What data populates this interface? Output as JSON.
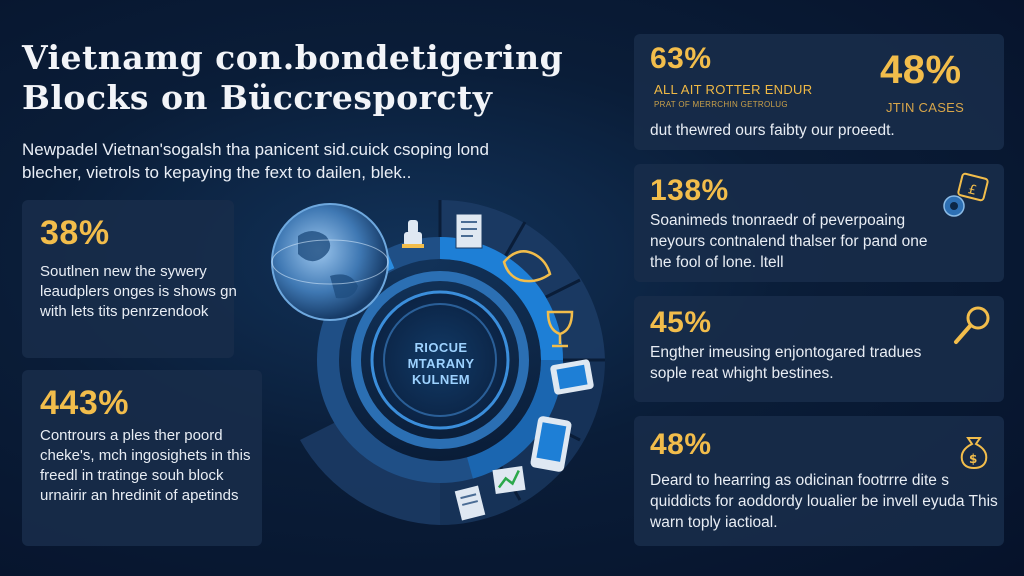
{
  "title": {
    "line1": "Vietnamg con.bondetigering",
    "line2": "Blocks on Büccresporcty"
  },
  "subtitle": {
    "lead": "Newpadel Vietnan'sogalsh tha panicent sid.cuick csoping lond",
    "line2": "blecher, vietrols to kepaying the fext to dailen, blek.."
  },
  "left_cards": [
    {
      "percent": "38%",
      "text": "Soutlnen new the sywery leaudplers onges is shows gn with lets tits penrzendook"
    },
    {
      "percent": "443%",
      "text": "Contrours a ples ther poord cheke's, mch ingosighets in this freedl in tratinge souh block urnairir an hredinit of apetinds"
    }
  ],
  "right_cards": [
    {
      "percent": "63%",
      "percent2": "48%",
      "label_upper": "ALL AIT ROTTER ENDUR",
      "label_small": "PRAT OF MERRCHIN GETROLUG",
      "label_cases": "JTIN CASES",
      "text": "dut thewred ours faibty our proeedt."
    },
    {
      "percent": "138%",
      "text": "Soanimeds tnonraedr of peverpoaing neyours contnalend thalser for pand one the fool of lone. ltell"
    },
    {
      "percent": "45%",
      "text": "Engther imeusing enjontogared tradues sople reat whight bestines."
    },
    {
      "percent": "48%",
      "text": "Deard to hearring as odicinan footrrre dite s quiddicts for aoddordy loualier be invell eyuda This warn toply iactioal."
    }
  ],
  "center": {
    "line1": "RIOCUE",
    "line2": "MTARANY",
    "line3": "KULNEM"
  },
  "colors": {
    "accent": "#f2bd4b",
    "card_bg": "#182c4a",
    "ring_blue": "#1e7fd6",
    "ring_dark": "#1a3a62"
  },
  "icons": {
    "globe": "globe-icon",
    "ring": [
      "stamp-icon",
      "document-icon",
      "handshake-icon",
      "trophy-icon",
      "tablet-icon",
      "smartphone-icon",
      "chart-icon",
      "certificate-icon"
    ],
    "right": [
      "certificate-icon",
      "magnifier-icon",
      "money-bag-icon"
    ]
  }
}
